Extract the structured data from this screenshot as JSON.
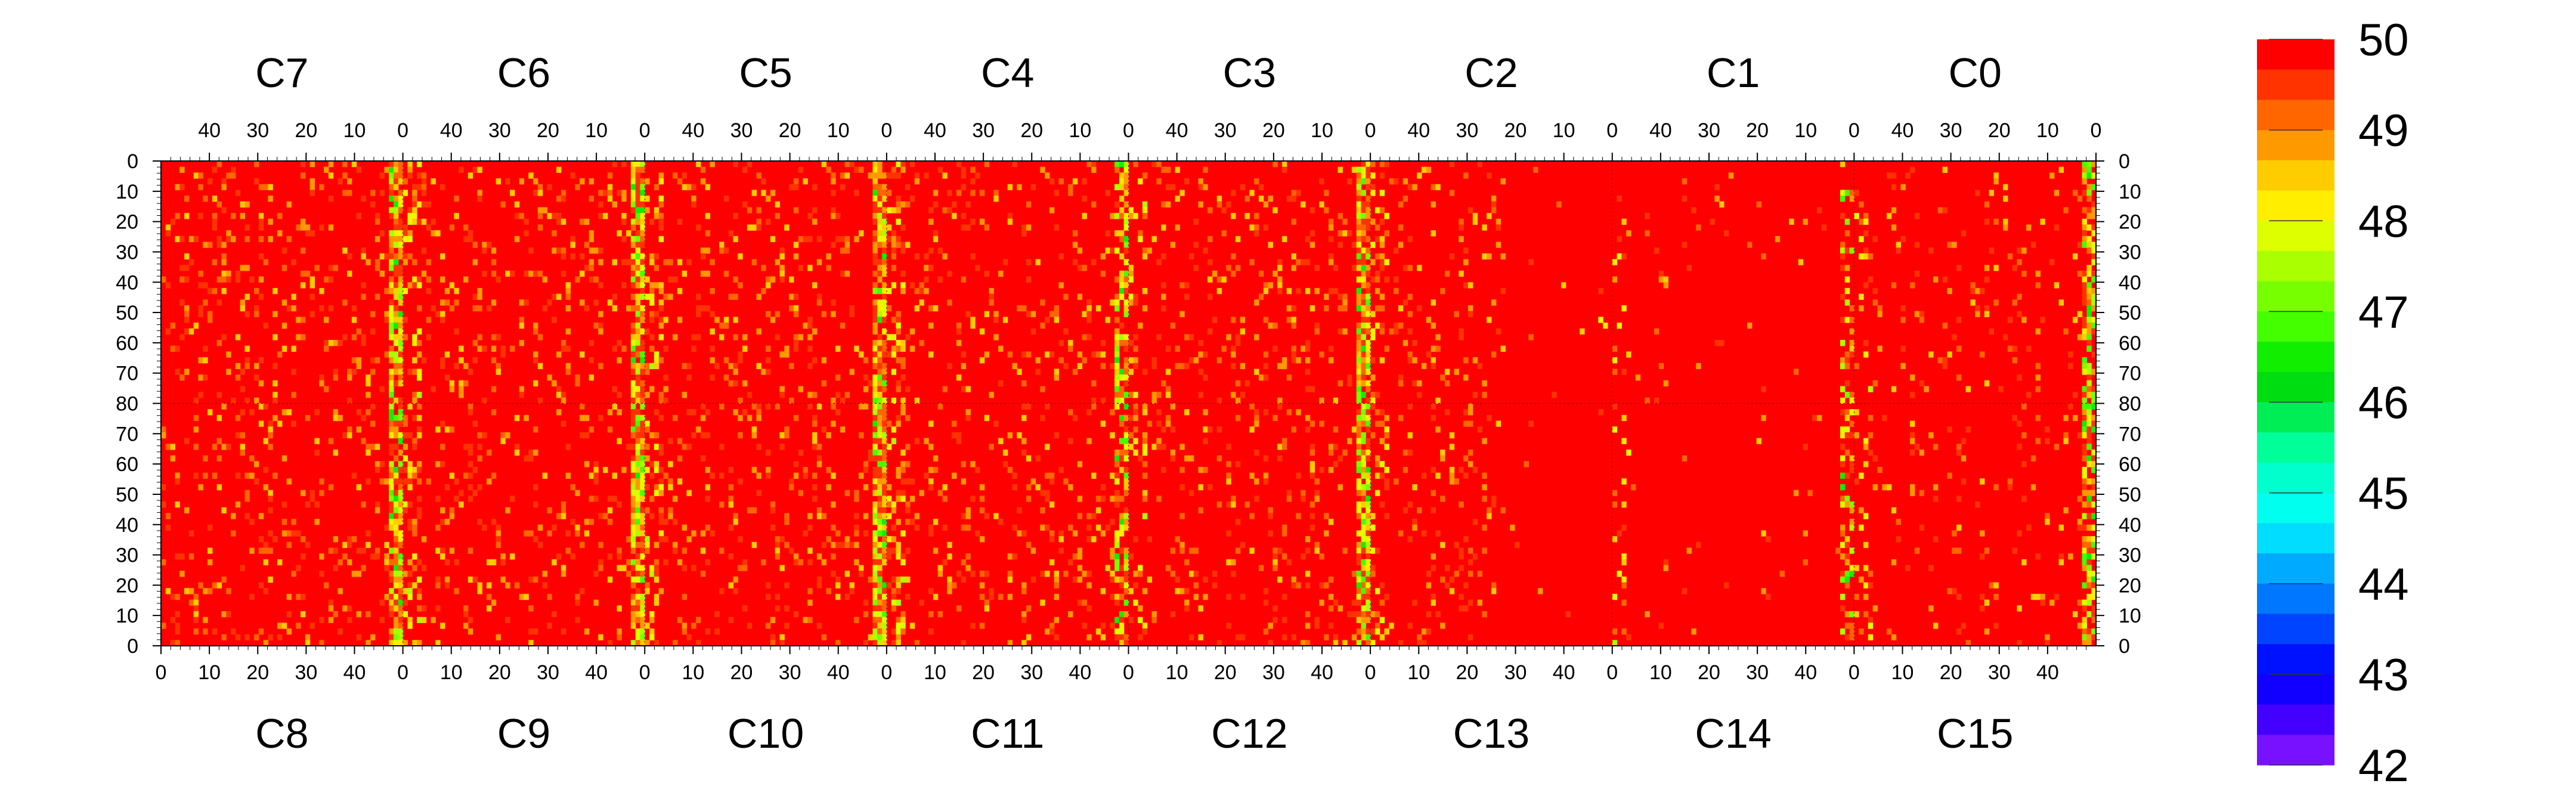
{
  "chart_data": {
    "type": "heatmap",
    "value_range": [
      42,
      50
    ],
    "colorbar": {
      "tick_labels": [
        "50",
        "49",
        "48",
        "47",
        "46",
        "45",
        "44",
        "43",
        "42"
      ],
      "tick_values": [
        50,
        49,
        48,
        47,
        46,
        45,
        44,
        43,
        42
      ],
      "colors": [
        "#ff0000",
        "#ff3300",
        "#ff6600",
        "#ff9900",
        "#ffcc00",
        "#ffee00",
        "#ddff00",
        "#aaff00",
        "#77ff00",
        "#44ff00",
        "#11ee00",
        "#00dd11",
        "#00ee55",
        "#00ff99",
        "#00ffcc",
        "#00ffee",
        "#00ddff",
        "#00aaff",
        "#0077ff",
        "#0044ff",
        "#0011ff",
        "#1100ff",
        "#4400ff",
        "#7711ff"
      ]
    },
    "top_columns": {
      "labels": [
        "C7",
        "C6",
        "C5",
        "C4",
        "C3",
        "C2",
        "C1",
        "C0"
      ],
      "x_tick_labels": [
        "40",
        "30",
        "20",
        "10",
        "0"
      ],
      "x_tick_values": [
        40,
        30,
        20,
        10,
        0
      ],
      "x_range": [
        50,
        0
      ]
    },
    "bottom_columns": {
      "labels": [
        "C8",
        "C9",
        "C10",
        "C11",
        "C12",
        "C13",
        "C14",
        "C15"
      ],
      "x_tick_labels": [
        "0",
        "10",
        "20",
        "30",
        "40"
      ],
      "x_tick_values": [
        0,
        10,
        20,
        30,
        40
      ],
      "x_range": [
        0,
        50
      ]
    },
    "y_top_half": {
      "tick_labels": [
        "0",
        "10",
        "20",
        "30",
        "40",
        "50",
        "60",
        "70",
        "80"
      ],
      "tick_values": [
        0,
        10,
        20,
        30,
        40,
        50,
        60,
        70,
        80
      ],
      "range": [
        0,
        80
      ]
    },
    "y_bottom_half": {
      "tick_labels": [
        "80",
        "70",
        "60",
        "50",
        "40",
        "30",
        "20",
        "10",
        "0"
      ],
      "tick_values": [
        80,
        70,
        60,
        50,
        40,
        30,
        20,
        10,
        0
      ],
      "range": [
        80,
        0
      ]
    },
    "block_noise_level": [
      0.55,
      0.55,
      0.55,
      0.5,
      0.5,
      0.45,
      0.06,
      0.3
    ],
    "block_hot_edge_level": [
      0.85,
      0.85,
      0.9,
      0.55,
      0.85,
      0.3,
      0.35,
      0.7
    ],
    "baseline_value": 50
  }
}
